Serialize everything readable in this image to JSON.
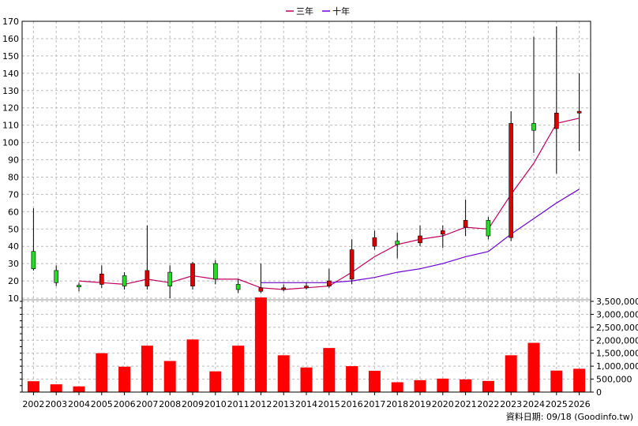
{
  "chart_data": {
    "type": "candlestick",
    "legend": [
      {
        "label": "三年",
        "color": "#c00060"
      },
      {
        "label": "十年",
        "color": "#6a00d0"
      }
    ],
    "years": [
      "2002",
      "2003",
      "2004",
      "2005",
      "2006",
      "2007",
      "2008",
      "2009",
      "2010",
      "2011",
      "2012",
      "2013",
      "2014",
      "2015",
      "2016",
      "2017",
      "2018",
      "2019",
      "2020",
      "2021",
      "2022",
      "2023",
      "2024",
      "2025",
      "2026"
    ],
    "price_axis": {
      "min": 10,
      "max": 170,
      "ticks": [
        10,
        20,
        30,
        40,
        50,
        60,
        70,
        80,
        90,
        100,
        110,
        120,
        130,
        140,
        150,
        160,
        170
      ]
    },
    "volume_axis": {
      "min": 0,
      "max": 3500000,
      "ticks": [
        "0",
        "500,000",
        "1,000,000",
        "1,500,000",
        "2,000,000",
        "2,500,000",
        "3,000,000",
        "3,500,000"
      ]
    },
    "candles": [
      {
        "year": "2002",
        "open": 37,
        "close": 27,
        "high": 62,
        "low": 26
      },
      {
        "year": "2003",
        "open": 26,
        "close": 19,
        "high": 29,
        "low": 17
      },
      {
        "year": "2004",
        "open": 17.5,
        "close": 16.5,
        "high": 19,
        "low": 14
      },
      {
        "year": "2005",
        "open": 18,
        "close": 24,
        "high": 29,
        "low": 16
      },
      {
        "year": "2006",
        "open": 23,
        "close": 17,
        "high": 25,
        "low": 15
      },
      {
        "year": "2007",
        "open": 17,
        "close": 26,
        "high": 52,
        "low": 15
      },
      {
        "year": "2008",
        "open": 25,
        "close": 17,
        "high": 29,
        "low": 10
      },
      {
        "year": "2009",
        "open": 17,
        "close": 30,
        "high": 31,
        "low": 15
      },
      {
        "year": "2010",
        "open": 30,
        "close": 21,
        "high": 32,
        "low": 18
      },
      {
        "year": "2011",
        "open": 18,
        "close": 15,
        "high": 21,
        "low": 13
      },
      {
        "year": "2012",
        "open": 14,
        "close": 16,
        "high": 30,
        "low": 13
      },
      {
        "year": "2013",
        "open": 15,
        "close": 16,
        "high": 18,
        "low": 14
      },
      {
        "year": "2014",
        "open": 16,
        "close": 17,
        "high": 19,
        "low": 15
      },
      {
        "year": "2015",
        "open": 17,
        "close": 20,
        "high": 27,
        "low": 16
      },
      {
        "year": "2016",
        "open": 21,
        "close": 38,
        "high": 44,
        "low": 18
      },
      {
        "year": "2017",
        "open": 40,
        "close": 45,
        "high": 49,
        "low": 38
      },
      {
        "year": "2018",
        "open": 43,
        "close": 41,
        "high": 48,
        "low": 33
      },
      {
        "year": "2019",
        "open": 42,
        "close": 46,
        "high": 52,
        "low": 40
      },
      {
        "year": "2020",
        "open": 47,
        "close": 49,
        "high": 52,
        "low": 39
      },
      {
        "year": "2021",
        "open": 51,
        "close": 55,
        "high": 67,
        "low": 46
      },
      {
        "year": "2022",
        "open": 55,
        "close": 46,
        "high": 57,
        "low": 44
      },
      {
        "year": "2023",
        "open": 45,
        "close": 111,
        "high": 118,
        "low": 43
      },
      {
        "year": "2024",
        "open": 111,
        "close": 107,
        "high": 161,
        "low": 94
      },
      {
        "year": "2025",
        "open": 108,
        "close": 117,
        "high": 167,
        "low": 82
      },
      {
        "year": "2026",
        "open": 117,
        "close": 118,
        "high": 140,
        "low": 95
      }
    ],
    "series": [
      {
        "name": "三年",
        "values": [
          null,
          null,
          20,
          19,
          18,
          21,
          19,
          23,
          21,
          21,
          16,
          15,
          16,
          17,
          25,
          34,
          41,
          44,
          46,
          51,
          50,
          70,
          88,
          111,
          114
        ]
      },
      {
        "name": "十年",
        "values": [
          null,
          null,
          null,
          null,
          null,
          null,
          null,
          null,
          null,
          null,
          19,
          19,
          19,
          19,
          20,
          22,
          25,
          27,
          30,
          34,
          37,
          47,
          56,
          65,
          73
        ]
      }
    ],
    "volume": [
      420000,
      300000,
      220000,
      1500000,
      980000,
      1790000,
      1200000,
      2030000,
      800000,
      1790000,
      3650000,
      1420000,
      950000,
      1700000,
      1000000,
      820000,
      380000,
      460000,
      520000,
      490000,
      430000,
      1420000,
      1900000,
      830000,
      900000
    ],
    "footer": "資料日期: 09/18 (Goodinfo.tw)"
  },
  "colors": {
    "up": "#dd0000",
    "down": "#22dd22",
    "volume": "#ff0000",
    "grid": "#bbbbbb"
  }
}
